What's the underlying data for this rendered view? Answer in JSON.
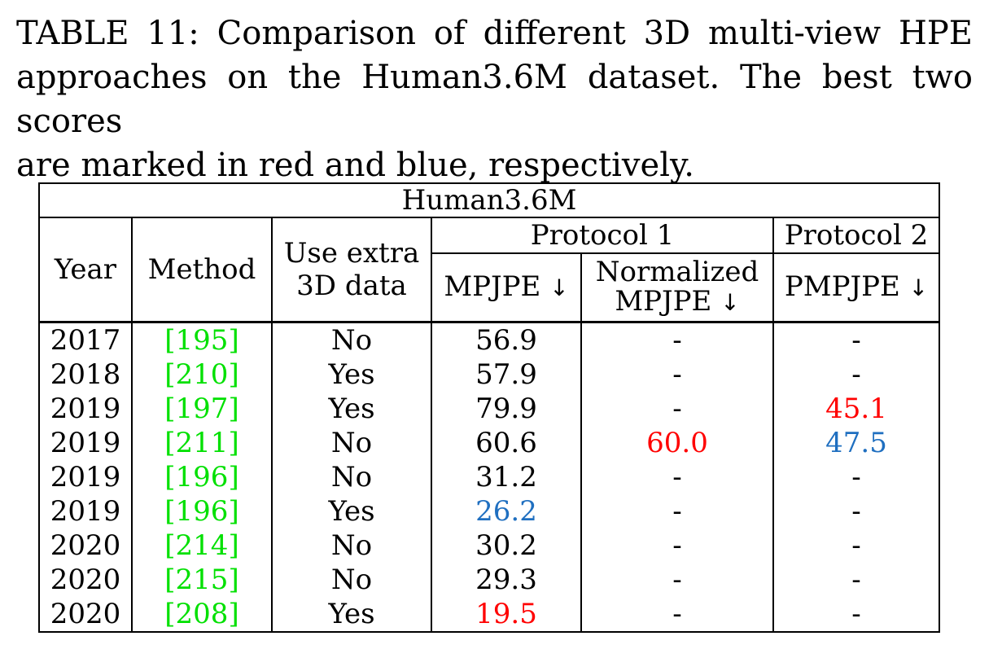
{
  "caption": {
    "line1": "TABLE 11: Comparison of different 3D multi-view HPE",
    "line2": "approaches on the Human3.6M dataset. The best two scores",
    "line3": "are marked in red and blue, respectively."
  },
  "table": {
    "dataset": "Human3.6M",
    "headers": {
      "year": "Year",
      "method": "Method",
      "extra_line1": "Use extra",
      "extra_line2": "3D data",
      "protocol1": "Protocol 1",
      "protocol2": "Protocol 2",
      "mpjpe": "MPJPE",
      "norm_line1": "Normalized",
      "norm_line2": "MPJPE",
      "pmpjpe": "PMPJPE",
      "arrow": "↓"
    },
    "rows": [
      {
        "year": "2017",
        "method": "[195]",
        "extra": "No",
        "mpjpe": "56.9",
        "nmpjpe": "-",
        "pmpjpe": "-"
      },
      {
        "year": "2018",
        "method": "[210]",
        "extra": "Yes",
        "mpjpe": "57.9",
        "nmpjpe": "-",
        "pmpjpe": "-"
      },
      {
        "year": "2019",
        "method": "[197]",
        "extra": "Yes",
        "mpjpe": "79.9",
        "nmpjpe": "-",
        "pmpjpe": "45.1"
      },
      {
        "year": "2019",
        "method": "[211]",
        "extra": "No",
        "mpjpe": "60.6",
        "nmpjpe": "60.0",
        "pmpjpe": "47.5"
      },
      {
        "year": "2019",
        "method": "[196]",
        "extra": "No",
        "mpjpe": "31.2",
        "nmpjpe": "-",
        "pmpjpe": "-"
      },
      {
        "year": "2019",
        "method": "[196]",
        "extra": "Yes",
        "mpjpe": "26.2",
        "nmpjpe": "-",
        "pmpjpe": "-"
      },
      {
        "year": "2020",
        "method": "[214]",
        "extra": "No",
        "mpjpe": "30.2",
        "nmpjpe": "-",
        "pmpjpe": "-"
      },
      {
        "year": "2020",
        "method": "[215]",
        "extra": "No",
        "mpjpe": "29.3",
        "nmpjpe": "-",
        "pmpjpe": "-"
      },
      {
        "year": "2020",
        "method": "[208]",
        "extra": "Yes",
        "mpjpe": "19.5",
        "nmpjpe": "-",
        "pmpjpe": "-"
      }
    ]
  },
  "colors": {
    "best": "#ff0000",
    "second_best": "#1f6fc0",
    "reference_link": "#00e000"
  }
}
